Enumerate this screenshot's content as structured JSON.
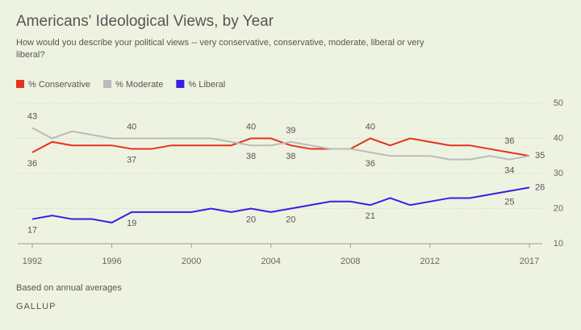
{
  "chart_data": {
    "type": "line",
    "title": "Americans' Ideological Views, by Year",
    "subtitle": "How would you describe your political views -- very conservative, conservative, moderate, liberal or very liberal?",
    "note": "Based on annual averages",
    "source": "GALLUP",
    "x": [
      1992,
      1993,
      1994,
      1995,
      1996,
      1997,
      1998,
      1999,
      2000,
      2001,
      2002,
      2003,
      2004,
      2005,
      2006,
      2007,
      2008,
      2009,
      2010,
      2011,
      2012,
      2013,
      2014,
      2015,
      2016,
      2017
    ],
    "xlim": [
      1992,
      2017
    ],
    "xticks": [
      1992,
      1996,
      2000,
      2004,
      2008,
      2012,
      2017
    ],
    "ylim": [
      10,
      50
    ],
    "yticks": [
      10,
      20,
      30,
      40,
      50
    ],
    "grid": true,
    "series": [
      {
        "name": "% Conservative",
        "color": "#e5321d",
        "values": [
          36,
          39,
          38,
          38,
          38,
          37,
          37,
          38,
          38,
          38,
          38,
          40,
          40,
          38,
          37,
          37,
          37,
          40,
          38,
          40,
          39,
          38,
          38,
          37,
          36,
          35
        ],
        "value_labels": [
          "36",
          null,
          null,
          null,
          null,
          "37",
          null,
          null,
          null,
          null,
          null,
          "40",
          null,
          "38",
          null,
          null,
          null,
          "40",
          null,
          null,
          null,
          null,
          null,
          null,
          "36",
          "35"
        ]
      },
      {
        "name": "% Moderate",
        "color": "#bbbbbb",
        "values": [
          43,
          40,
          42,
          41,
          40,
          40,
          40,
          40,
          40,
          40,
          39,
          38,
          38,
          39,
          38,
          37,
          37,
          36,
          35,
          35,
          35,
          34,
          34,
          35,
          34,
          35
        ],
        "value_labels": [
          "43",
          null,
          null,
          null,
          null,
          "40",
          null,
          null,
          null,
          null,
          null,
          "38",
          null,
          "39",
          null,
          null,
          null,
          "36",
          null,
          null,
          null,
          null,
          null,
          null,
          "34",
          null
        ]
      },
      {
        "name": "% Liberal",
        "color": "#3b1de6",
        "values": [
          17,
          18,
          17,
          17,
          16,
          19,
          19,
          19,
          19,
          20,
          19,
          20,
          19,
          20,
          21,
          22,
          22,
          21,
          23,
          21,
          22,
          23,
          23,
          24,
          25,
          26
        ],
        "value_labels": [
          "17",
          null,
          null,
          null,
          null,
          "19",
          null,
          null,
          null,
          null,
          null,
          "20",
          null,
          "20",
          null,
          null,
          null,
          "21",
          null,
          null,
          null,
          null,
          null,
          null,
          "25",
          "26"
        ]
      }
    ]
  }
}
